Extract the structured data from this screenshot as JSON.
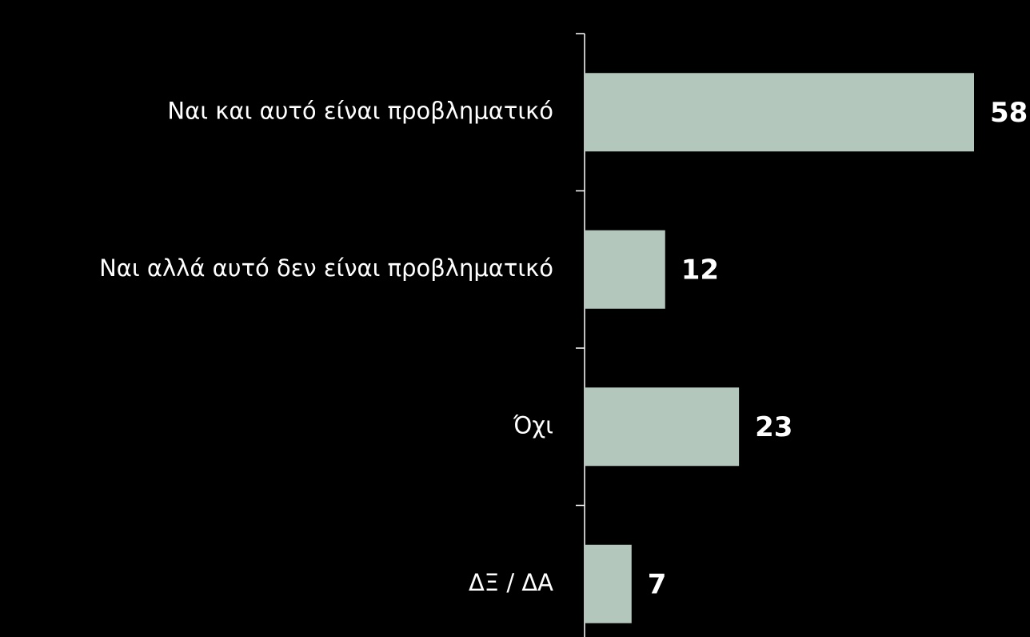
{
  "chart_data": {
    "type": "bar",
    "orientation": "horizontal",
    "categories": [
      "Ναι και αυτό είναι προβληματικό",
      "Ναι αλλά αυτό δεν είναι προβληματικό",
      "Όχι",
      "ΔΞ / ΔΑ"
    ],
    "values": [
      58,
      12,
      23,
      7
    ],
    "color": "#b3c7bd"
  }
}
